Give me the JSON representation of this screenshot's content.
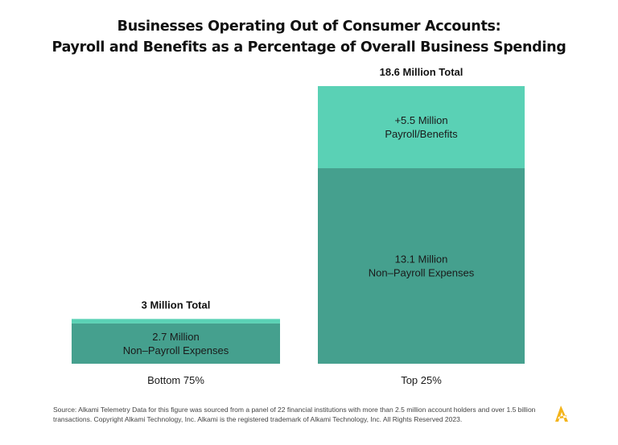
{
  "title_line1": "Businesses Operating Out of Consumer Accounts:",
  "title_line2": "Payroll and Benefits as a Percentage of Overall Business Spending",
  "source": "Source: Alkami Telemetry Data for this figure was sourced from a panel of 22 financial institutions with more than 2.5 million account holders and over 1.5 billion transactions. Copyright Alkami Technology, Inc. Alkami is the registered trademark of Alkami Technology, Inc. All Rights Reserved 2023.",
  "logo_icon": "alkami-logo-icon",
  "colors": {
    "nonpayroll": "#45a08e",
    "payroll": "#5ad1b5",
    "logo": "#f4b41a"
  },
  "chart_data": {
    "type": "bar",
    "stacked": true,
    "categories": [
      "Bottom 75%",
      "Top 25%"
    ],
    "totals": [
      3,
      18.6
    ],
    "total_labels": [
      "3 Million Total",
      "18.6 Million Total"
    ],
    "series": [
      {
        "key": "nonpayroll",
        "values": [
          2.7,
          13.1
        ],
        "labels": [
          [
            "2.7 Million",
            "Non–Payroll Expenses"
          ],
          [
            "13.1 Million",
            "Non–Payroll Expenses"
          ]
        ]
      },
      {
        "key": "payroll",
        "values": [
          0.3,
          5.5
        ],
        "labels": [
          null,
          [
            "+5.5 Million",
            "Payroll/Benefits"
          ]
        ]
      }
    ],
    "ylim": [
      0,
      18.6
    ],
    "grid": false,
    "legend": "none"
  }
}
